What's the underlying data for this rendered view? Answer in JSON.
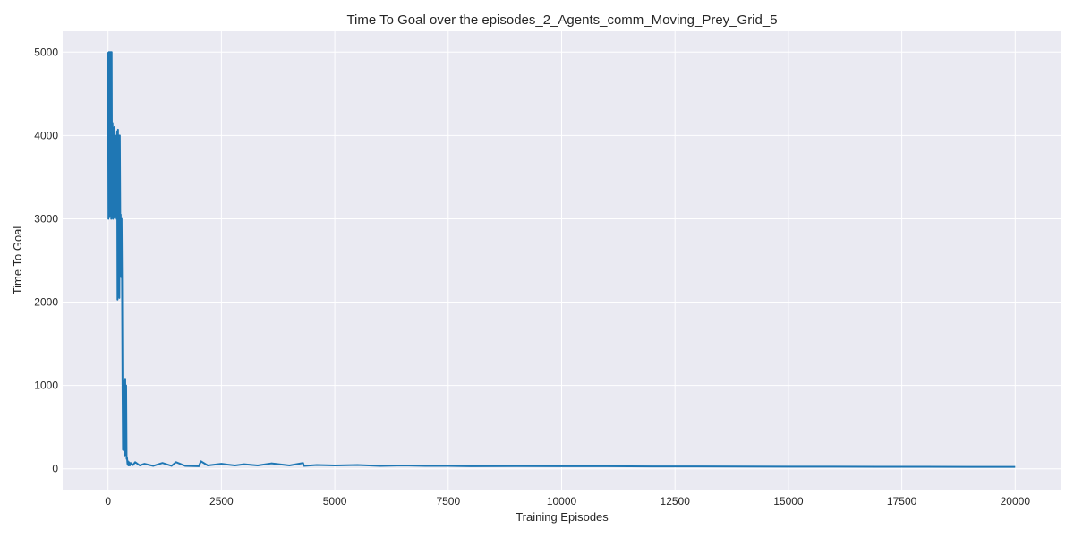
{
  "chart_data": {
    "type": "line",
    "title": "Time To Goal over the episodes_2_Agents_comm_Moving_Prey_Grid_5",
    "xlabel": "Training Episodes",
    "ylabel": "Time To Goal",
    "xlim": [
      -1000,
      21000
    ],
    "ylim": [
      -250,
      5250
    ],
    "xticks": [
      0,
      2500,
      5000,
      7500,
      10000,
      12500,
      15000,
      17500,
      20000
    ],
    "yticks": [
      0,
      1000,
      2000,
      3000,
      4000,
      5000
    ],
    "grid": true,
    "legend": false,
    "background_color": "#eaeaf2",
    "series_color": "#1f77b4",
    "series": [
      {
        "x": [
          0,
          10,
          20,
          30,
          40,
          50,
          60,
          70,
          80,
          90,
          100,
          110,
          120,
          130,
          140,
          150,
          160,
          170,
          180,
          190,
          200,
          210,
          220,
          230,
          240,
          250,
          260,
          270,
          280,
          290,
          300,
          310,
          320,
          330,
          340,
          350,
          360,
          370,
          380,
          390,
          400,
          410,
          420,
          430,
          440,
          450,
          460,
          480,
          500,
          550,
          600,
          700,
          800,
          1000,
          1200,
          1400,
          1500,
          1700,
          2000,
          2050,
          2200,
          2500,
          2800,
          3000,
          3300,
          3600,
          4000,
          4300,
          4320,
          4600,
          5000,
          5500,
          6000,
          6500,
          7000,
          7500,
          8000,
          9000,
          10000,
          11000,
          12000,
          13000,
          14000,
          15000,
          16000,
          17000,
          18000,
          19000,
          20000
        ],
        "y": [
          5000,
          3000,
          5000,
          3020,
          5000,
          3050,
          5000,
          3000,
          5000,
          3020,
          4150,
          3000,
          4000,
          3050,
          4100,
          3010,
          4000,
          3050,
          3900,
          3000,
          4050,
          2030,
          4070,
          3020,
          4000,
          2050,
          4000,
          3000,
          3050,
          2300,
          3000,
          2250,
          1000,
          230,
          1050,
          220,
          1000,
          150,
          1080,
          200,
          1000,
          120,
          130,
          60,
          90,
          40,
          80,
          40,
          70,
          45,
          80,
          40,
          60,
          35,
          70,
          35,
          80,
          35,
          30,
          90,
          40,
          60,
          40,
          55,
          40,
          65,
          40,
          70,
          35,
          45,
          40,
          45,
          35,
          40,
          35,
          35,
          30,
          32,
          30,
          30,
          28,
          28,
          26,
          25,
          25,
          24,
          24,
          22,
          22
        ]
      }
    ]
  }
}
